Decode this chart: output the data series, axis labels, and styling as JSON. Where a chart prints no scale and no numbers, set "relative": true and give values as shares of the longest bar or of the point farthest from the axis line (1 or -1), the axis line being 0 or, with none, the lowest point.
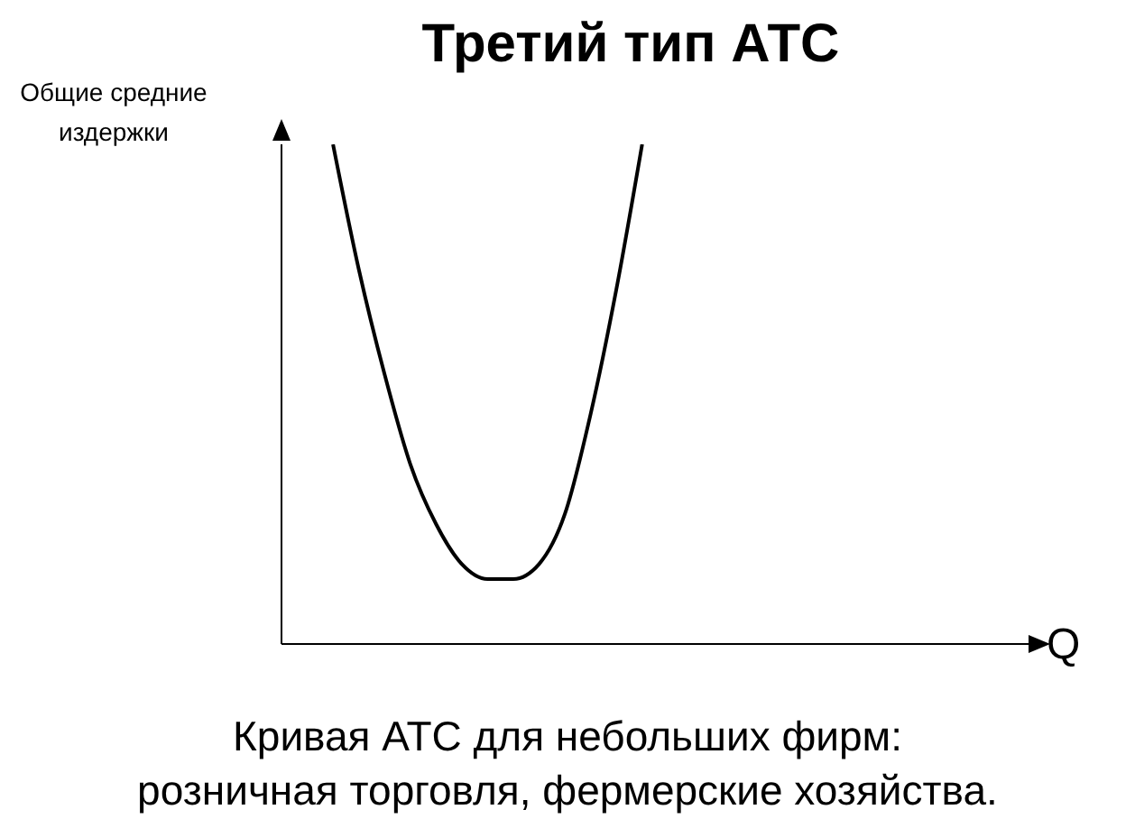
{
  "chart_data": {
    "type": "line",
    "title": "Третий тип АТС",
    "ylabel": "Общие средние издержки",
    "xlabel": "Q",
    "annotations": [
      "Кривая АТС для небольших фирм:\nрозничная торговля, фермерские хозяйства."
    ],
    "relative": true,
    "marker": "none",
    "color": "#000000",
    "categories": [
      null,
      null,
      null,
      null,
      null,
      null,
      null,
      null,
      null,
      null,
      null,
      null,
      null,
      null,
      null,
      null,
      null,
      null,
      null,
      null,
      null,
      null,
      null,
      null,
      null,
      null,
      null,
      null,
      null,
      null
    ],
    "values": [
      null,
      null,
      1,
      0.75,
      0.54,
      0.36,
      0.24,
      0.16,
      0.13,
      0.13,
      0.16,
      0.26,
      0.46,
      0.71,
      1,
      null,
      null,
      null,
      null,
      null,
      null,
      null,
      null,
      null,
      null,
      null,
      null,
      null,
      null,
      null
    ]
  }
}
